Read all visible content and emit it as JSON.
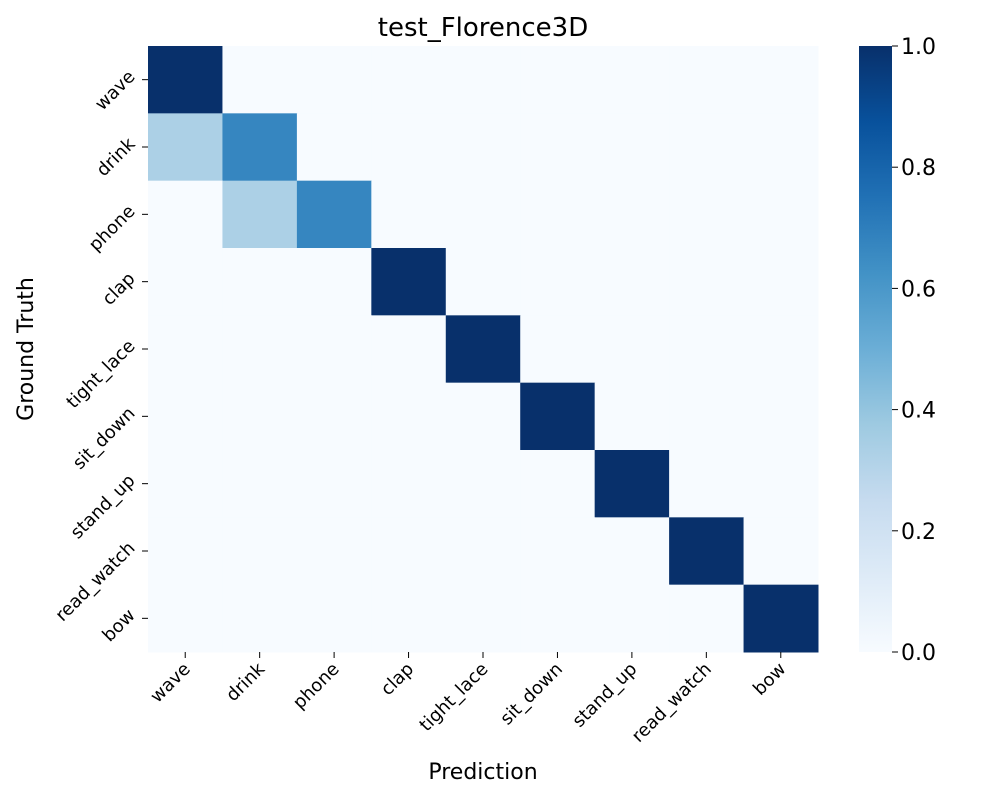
{
  "chart_data": {
    "type": "heatmap",
    "title": "test_Florence3D",
    "xlabel": "Prediction",
    "ylabel": "Ground Truth",
    "x_categories": [
      "wave",
      "drink",
      "phone",
      "clap",
      "tight_lace",
      "sit_down",
      "stand_up",
      "read_watch",
      "bow"
    ],
    "y_categories": [
      "wave",
      "drink",
      "phone",
      "clap",
      "tight_lace",
      "sit_down",
      "stand_up",
      "read_watch",
      "bow"
    ],
    "values": [
      [
        1.0,
        0,
        0,
        0,
        0,
        0,
        0,
        0,
        0
      ],
      [
        0.33,
        0.67,
        0,
        0,
        0,
        0,
        0,
        0,
        0
      ],
      [
        0,
        0.33,
        0.67,
        0,
        0,
        0,
        0,
        0,
        0
      ],
      [
        0,
        0,
        0,
        1.0,
        0,
        0,
        0,
        0,
        0
      ],
      [
        0,
        0,
        0,
        0,
        1.0,
        0,
        0,
        0,
        0
      ],
      [
        0,
        0,
        0,
        0,
        0,
        1.0,
        0,
        0,
        0
      ],
      [
        0,
        0,
        0,
        0,
        0,
        0,
        1.0,
        0,
        0
      ],
      [
        0,
        0,
        0,
        0,
        0,
        0,
        0,
        1.0,
        0
      ],
      [
        0,
        0,
        0,
        0,
        0,
        0,
        0,
        0,
        1.0
      ]
    ],
    "colormap": "Blues",
    "colormap_stops": [
      "#f7fbff",
      "#deebf7",
      "#c6dbef",
      "#9ecae1",
      "#6baed6",
      "#4292c6",
      "#2171b5",
      "#08519c",
      "#08306b"
    ],
    "vmin": 0,
    "vmax": 1,
    "colorbar_ticks": [
      "0.0",
      "0.2",
      "0.4",
      "0.6",
      "0.8",
      "1.0"
    ],
    "grid": false
  }
}
